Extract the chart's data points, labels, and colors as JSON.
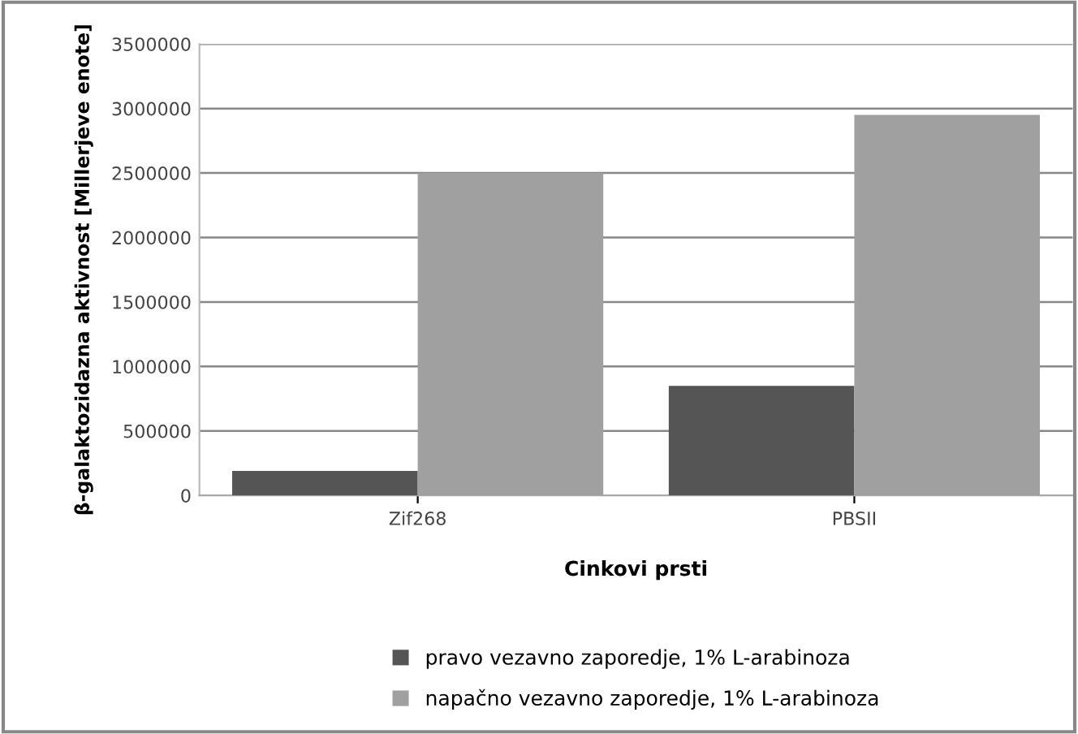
{
  "chart_data": {
    "type": "bar",
    "xlabel": "Cinkovi prsti",
    "ylabel": "β-galaktozidazna aktivnost [Millerjeve enote]",
    "categories": [
      "Zif268",
      "PBSII"
    ],
    "series": [
      {
        "name": "pravo vezavno zaporedje, 1% L-arabinoza",
        "color": "#555555",
        "values": [
          190000,
          850000
        ]
      },
      {
        "name": "napačno vezavno zaporedje, 1% L-arabinoza",
        "color": "#a0a0a0",
        "values": [
          2500000,
          2950000
        ]
      }
    ],
    "ylim": [
      0,
      3500000
    ],
    "yticks": [
      0,
      500000,
      1000000,
      1500000,
      2000000,
      2500000,
      3000000,
      3500000
    ],
    "grid": "y",
    "legend": "bottom"
  }
}
